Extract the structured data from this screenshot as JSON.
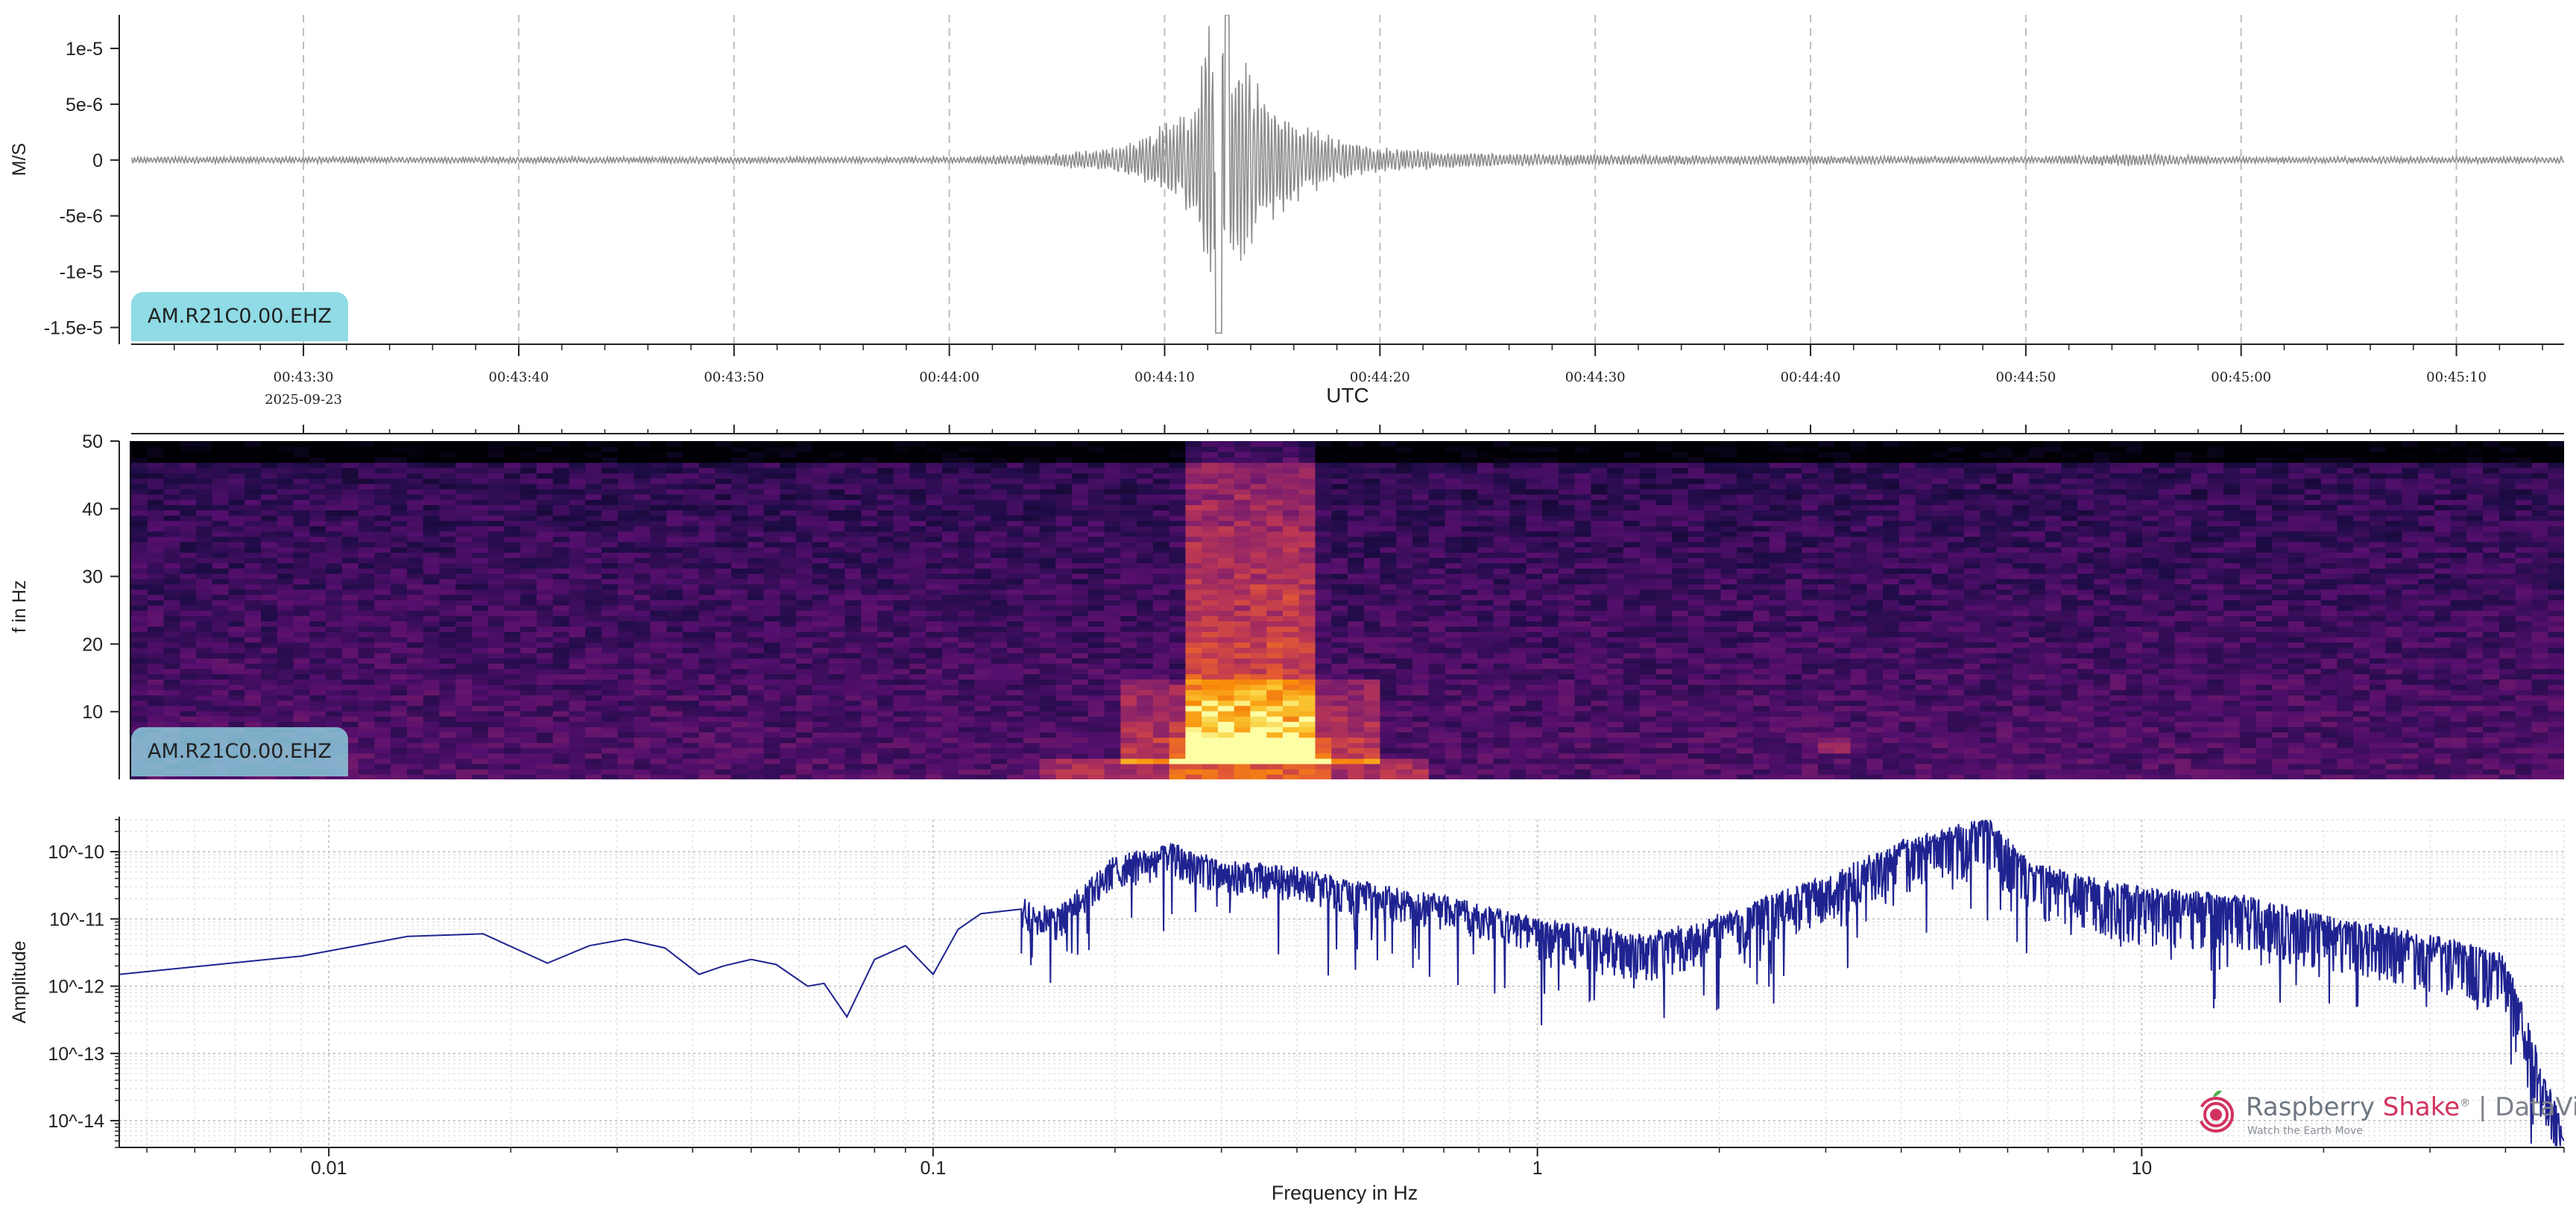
{
  "colors": {
    "waveform": "#8c8c8c",
    "spectrum": "#1f2390",
    "badge": "#8fdbe6",
    "brand_red": "#d1335f",
    "brand_gray": "#6e7680"
  },
  "station_label": "AM.R21C0.00.EHZ",
  "logo": {
    "name_part1": "Raspberry ",
    "name_part2": "Shake",
    "registered": "®",
    "separator": " | ",
    "product": "DataView",
    "tagline": "Watch the Earth Move",
    "icon": "raspberry-shake-logo-icon"
  },
  "chart_data": [
    {
      "type": "line",
      "panel": "waveform",
      "ylabel": "M/S",
      "xlabel": "UTC",
      "date_label": "2025-09-23",
      "y_ticks": [
        "1e-5",
        "5e-6",
        "0",
        "-5e-6",
        "-1e-5",
        "-1.5e-5"
      ],
      "y_tick_values": [
        1e-05,
        5e-06,
        0,
        -5e-06,
        -1e-05,
        -1.5e-05
      ],
      "ylim": [
        -1.65e-05,
        1.3e-05
      ],
      "x_ticks": [
        "00:43:30",
        "00:43:40",
        "00:43:50",
        "00:44:00",
        "00:44:10",
        "00:44:20",
        "00:44:30",
        "00:44:40",
        "00:44:50",
        "00:45:00",
        "00:45:10"
      ],
      "xlim_seconds_after_00_43_00": [
        22,
        135
      ],
      "grid": "vertical dashed at major ticks",
      "series": [
        {
          "x_seconds_after_00_43_00": [
            22,
            30,
            40,
            50,
            60,
            64,
            67,
            69,
            70,
            71.5,
            72,
            72.5,
            73,
            73.5,
            74,
            75,
            76,
            77,
            78,
            80,
            83,
            86,
            90,
            100,
            110,
            115,
            118,
            120,
            130,
            135
          ],
          "amplitude_envelope": [
            3e-07,
            3e-07,
            3e-07,
            3e-07,
            3e-07,
            5e-07,
            1e-06,
            2e-06,
            3.5e-06,
            6e-06,
            1.3e-05,
            1.55e-05,
            9e-06,
            1.1e-05,
            8e-06,
            6e-06,
            4e-06,
            3e-06,
            2e-06,
            1.2e-06,
            8e-07,
            6e-07,
            5e-07,
            4e-07,
            3e-07,
            6e-07,
            4e-07,
            3e-07,
            3e-07,
            3e-07
          ]
        }
      ]
    },
    {
      "type": "heatmap",
      "panel": "spectrogram",
      "ylabel": "f in Hz",
      "y_ticks": [
        "10",
        "20",
        "30",
        "40",
        "50"
      ],
      "y_tick_values": [
        10,
        20,
        30,
        40,
        50
      ],
      "ylim": [
        0,
        50
      ],
      "xlim_seconds_after_00_43_00": [
        22,
        135
      ],
      "colormap": "inferno",
      "energy_peaks": [
        {
          "x_seconds_after_00_43_00": [
            71,
            77
          ],
          "f_hz": [
            2,
            50
          ],
          "level": "very high"
        },
        {
          "x_seconds_after_00_43_00": [
            68,
            80
          ],
          "f_hz": [
            2,
            15
          ],
          "level": "high"
        },
        {
          "x_seconds_after_00_43_00": [
            100,
            102
          ],
          "f_hz": [
            4,
            6
          ],
          "level": "medium"
        }
      ]
    },
    {
      "type": "line",
      "panel": "spectrum",
      "xlabel": "Frequency in Hz",
      "ylabel": "Amplitude",
      "x_scale": "log",
      "y_scale": "log",
      "x_ticks": [
        "0.01",
        "0.1",
        "1",
        "10"
      ],
      "x_tick_values": [
        0.01,
        0.1,
        1,
        10
      ],
      "y_ticks": [
        "10^-10",
        "10^-11",
        "10^-12",
        "10^-13",
        "10^-14"
      ],
      "y_tick_values": [
        1e-10,
        1e-11,
        1e-12,
        1e-13,
        1e-14
      ],
      "xlim": [
        0.0045,
        50
      ],
      "ylim": [
        4e-15,
        3e-10
      ],
      "grid": "dotted major and minor",
      "series": [
        {
          "x": [
            0.0045,
            0.009,
            0.0135,
            0.018,
            0.023,
            0.027,
            0.031,
            0.036,
            0.041,
            0.045,
            0.05,
            0.055,
            0.062,
            0.066,
            0.072,
            0.08,
            0.09,
            0.1,
            0.11,
            0.12,
            0.14,
            0.16,
            0.2,
            0.25,
            0.3,
            0.4,
            0.5,
            0.7,
            1.0,
            1.5,
            2.0,
            3.0,
            4.0,
            5.0,
            5.5,
            6.5,
            8.0,
            10.0,
            15.0,
            20.0,
            30.0,
            40.0,
            50.0
          ],
          "y": [
            1.5e-12,
            2.8e-12,
            5.5e-12,
            6e-12,
            2.2e-12,
            4e-12,
            5e-12,
            3.7e-12,
            1.5e-12,
            2e-12,
            2.5e-12,
            2.1e-12,
            1e-12,
            1.1e-12,
            3.5e-13,
            2.5e-12,
            4e-12,
            1.5e-12,
            7e-12,
            1.2e-11,
            1.4e-11,
            1e-11,
            6e-11,
            9e-11,
            5e-11,
            4e-11,
            2.5e-11,
            1.5e-11,
            7e-12,
            4e-12,
            8e-12,
            3e-11,
            1e-10,
            1.8e-10,
            2.5e-10,
            5e-11,
            3e-11,
            2e-11,
            1.5e-11,
            8e-12,
            4e-12,
            2e-12,
            5e-15
          ]
        }
      ]
    }
  ]
}
